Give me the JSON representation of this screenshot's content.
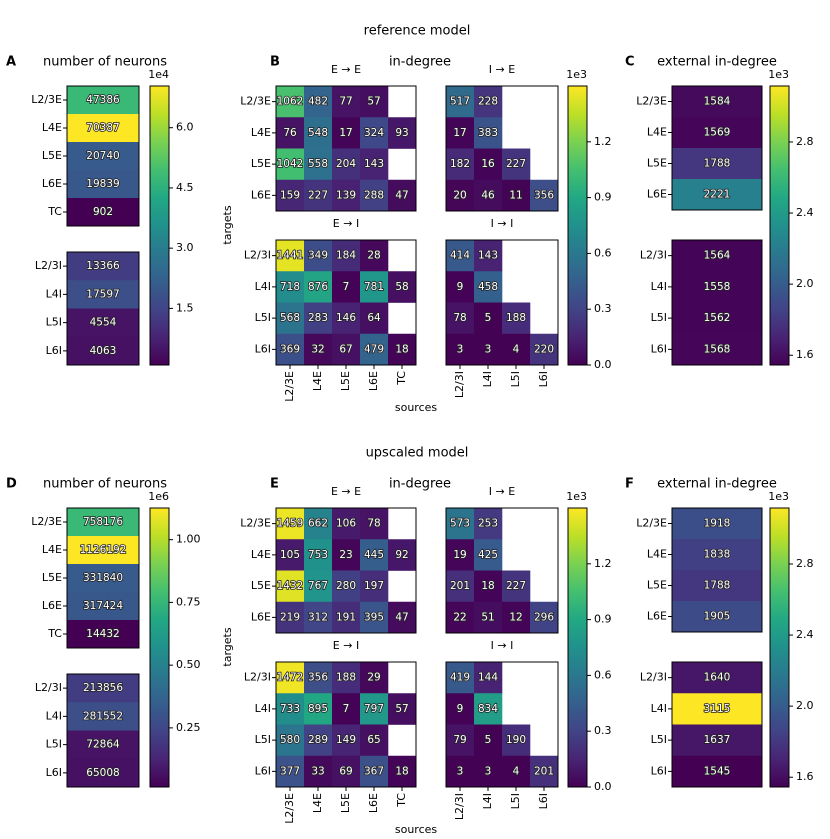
{
  "sections": [
    {
      "title": "reference model",
      "neurons": {
        "letter": "A",
        "title": "number of neurons",
        "groups": [
          {
            "rows": [
              "L2/3E",
              "L4E",
              "L5E",
              "L6E",
              "TC"
            ],
            "values": [
              47386,
              70387,
              20740,
              19839,
              902
            ]
          },
          {
            "rows": [
              "L2/3I",
              "L4I",
              "L5I",
              "L6I"
            ],
            "values": [
              13366,
              17597,
              4554,
              4063
            ]
          }
        ],
        "clim": [
          902,
          70387
        ],
        "cbar_label": "1e4",
        "cticks": [
          {
            "value": 15000,
            "label": "1.5"
          },
          {
            "value": 30000,
            "label": "3.0"
          },
          {
            "value": 45000,
            "label": "4.5"
          },
          {
            "value": 60000,
            "label": "6.0"
          }
        ]
      },
      "indegree": {
        "letter": "B",
        "title": "in-degree",
        "xlabel": "sources",
        "ylabel": "targets",
        "blocks": [
          {
            "title": "E → E",
            "rows": [
              "L2/3E",
              "L4E",
              "L5E",
              "L6E"
            ],
            "values": [
              [
                1062,
                482,
                77,
                57,
                null
              ],
              [
                76,
                548,
                17,
                324,
                93
              ],
              [
                1042,
                558,
                204,
                143,
                null
              ],
              [
                159,
                227,
                139,
                288,
                47
              ]
            ]
          },
          {
            "title": "I → E",
            "values": [
              [
                517,
                228,
                null,
                null
              ],
              [
                17,
                383,
                null,
                null
              ],
              [
                182,
                16,
                227,
                null
              ],
              [
                20,
                46,
                11,
                356
              ]
            ]
          },
          {
            "title": "E → I",
            "rows": [
              "L2/3I",
              "L4I",
              "L5I",
              "L6I"
            ],
            "cols": [
              "L2/3E",
              "L4E",
              "L5E",
              "L6E",
              "TC"
            ],
            "values": [
              [
                1441,
                349,
                184,
                28,
                null
              ],
              [
                718,
                876,
                7,
                781,
                58
              ],
              [
                568,
                283,
                146,
                64,
                null
              ],
              [
                369,
                32,
                67,
                479,
                18
              ]
            ]
          },
          {
            "title": "I → I",
            "cols": [
              "L2/3I",
              "L4I",
              "L5I",
              "L6I"
            ],
            "values": [
              [
                414,
                143,
                null,
                null
              ],
              [
                9,
                458,
                null,
                null
              ],
              [
                78,
                5,
                188,
                null
              ],
              [
                3,
                3,
                4,
                220
              ]
            ]
          }
        ],
        "clim": [
          0,
          1500
        ],
        "cbar_label": "1e3",
        "cticks": [
          {
            "value": 0,
            "label": "0.0"
          },
          {
            "value": 300,
            "label": "0.3"
          },
          {
            "value": 600,
            "label": "0.6"
          },
          {
            "value": 900,
            "label": "0.9"
          },
          {
            "value": 1200,
            "label": "1.2"
          }
        ]
      },
      "external": {
        "letter": "C",
        "title": "external in-degree",
        "groups": [
          {
            "rows": [
              "L2/3E",
              "L4E",
              "L5E",
              "L6E"
            ],
            "values": [
              1584,
              1569,
              1788,
              2221
            ]
          },
          {
            "rows": [
              "L2/3I",
              "L4I",
              "L5I",
              "L6I"
            ],
            "values": [
              1564,
              1558,
              1562,
              1568
            ]
          }
        ],
        "clim": [
          1545,
          3115
        ],
        "cbar_label": "1e3",
        "cticks": [
          {
            "value": 1600,
            "label": "1.6"
          },
          {
            "value": 2000,
            "label": "2.0"
          },
          {
            "value": 2400,
            "label": "2.4"
          },
          {
            "value": 2800,
            "label": "2.8"
          }
        ]
      }
    },
    {
      "title": "upscaled model",
      "neurons": {
        "letter": "D",
        "title": "number of neurons",
        "groups": [
          {
            "rows": [
              "L2/3E",
              "L4E",
              "L5E",
              "L6E",
              "TC"
            ],
            "values": [
              758176,
              1126192,
              331840,
              317424,
              14432
            ]
          },
          {
            "rows": [
              "L2/3I",
              "L4I",
              "L5I",
              "L6I"
            ],
            "values": [
              213856,
              281552,
              72864,
              65008
            ]
          }
        ],
        "clim": [
          14432,
          1126192
        ],
        "cbar_label": "1e6",
        "cticks": [
          {
            "value": 250000,
            "label": "0.25"
          },
          {
            "value": 500000,
            "label": "0.50"
          },
          {
            "value": 750000,
            "label": "0.75"
          },
          {
            "value": 1000000,
            "label": "1.00"
          }
        ]
      },
      "indegree": {
        "letter": "E",
        "title": "in-degree",
        "xlabel": "sources",
        "ylabel": "targets",
        "blocks": [
          {
            "title": "E → E",
            "rows": [
              "L2/3E",
              "L4E",
              "L5E",
              "L6E"
            ],
            "values": [
              [
                1459,
                662,
                106,
                78,
                null
              ],
              [
                105,
                753,
                23,
                445,
                92
              ],
              [
                1432,
                767,
                280,
                197,
                null
              ],
              [
                219,
                312,
                191,
                395,
                47
              ]
            ]
          },
          {
            "title": "I → E",
            "values": [
              [
                573,
                253,
                null,
                null
              ],
              [
                19,
                425,
                null,
                null
              ],
              [
                201,
                18,
                227,
                null
              ],
              [
                22,
                51,
                12,
                296
              ]
            ]
          },
          {
            "title": "E → I",
            "rows": [
              "L2/3I",
              "L4I",
              "L5I",
              "L6I"
            ],
            "cols": [
              "L2/3E",
              "L4E",
              "L5E",
              "L6E",
              "TC"
            ],
            "values": [
              [
                1472,
                356,
                188,
                29,
                null
              ],
              [
                733,
                895,
                7,
                797,
                57
              ],
              [
                580,
                289,
                149,
                65,
                null
              ],
              [
                377,
                33,
                69,
                367,
                18
              ]
            ]
          },
          {
            "title": "I → I",
            "cols": [
              "L2/3I",
              "L4I",
              "L5I",
              "L6I"
            ],
            "values": [
              [
                419,
                144,
                null,
                null
              ],
              [
                9,
                834,
                null,
                null
              ],
              [
                79,
                5,
                190,
                null
              ],
              [
                3,
                3,
                4,
                201
              ]
            ]
          }
        ],
        "clim": [
          0,
          1500
        ],
        "cbar_label": "1e3",
        "cticks": [
          {
            "value": 0,
            "label": "0.0"
          },
          {
            "value": 300,
            "label": "0.3"
          },
          {
            "value": 600,
            "label": "0.6"
          },
          {
            "value": 900,
            "label": "0.9"
          },
          {
            "value": 1200,
            "label": "1.2"
          }
        ]
      },
      "external": {
        "letter": "F",
        "title": "external in-degree",
        "groups": [
          {
            "rows": [
              "L2/3E",
              "L4E",
              "L5E",
              "L6E"
            ],
            "values": [
              1918,
              1838,
              1788,
              1905
            ]
          },
          {
            "rows": [
              "L2/3I",
              "L4I",
              "L5I",
              "L6I"
            ],
            "values": [
              1640,
              3115,
              1637,
              1545
            ]
          }
        ],
        "clim": [
          1545,
          3115
        ],
        "cbar_label": "1e3",
        "cticks": [
          {
            "value": 1600,
            "label": "1.6"
          },
          {
            "value": 2000,
            "label": "2.0"
          },
          {
            "value": 2400,
            "label": "2.4"
          },
          {
            "value": 2800,
            "label": "2.8"
          }
        ]
      }
    }
  ]
}
